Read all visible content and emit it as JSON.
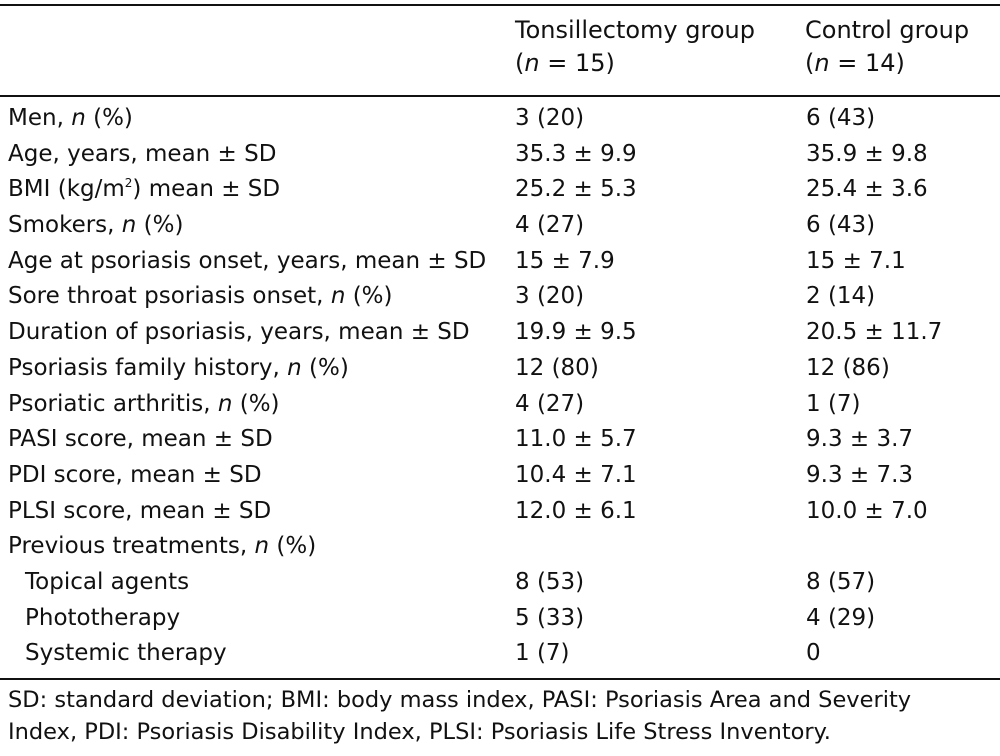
{
  "header": {
    "col1_title": "Tonsillectomy group",
    "col1_n": "(n = 15)",
    "col2_title": "Control group",
    "col2_n": "(n = 14)"
  },
  "rows": [
    {
      "label_pre": "Men, ",
      "label_it": "n",
      "label_post": " (%)",
      "v1": "3 (20)",
      "v2": "6 (43)"
    },
    {
      "label": "Age, years, mean ± SD",
      "v1": "35.3 ± 9.9",
      "v2": "35.9 ± 9.8"
    },
    {
      "label_pre": "BMI (kg/m",
      "label_sup": "2",
      "label_post": ") mean ± SD",
      "v1": "25.2 ± 5.3",
      "v2": "25.4 ± 3.6"
    },
    {
      "label_pre": "Smokers, ",
      "label_it": "n",
      "label_post": " (%)",
      "v1": "4 (27)",
      "v2": "6 (43)"
    },
    {
      "label": "Age at psoriasis onset, years, mean ± SD",
      "v1": "15 ± 7.9",
      "v2": "15 ± 7.1"
    },
    {
      "label_pre": "Sore throat psoriasis onset, ",
      "label_it": "n",
      "label_post": " (%)",
      "v1": "3 (20)",
      "v2": "2 (14)"
    },
    {
      "label": "Duration of psoriasis, years, mean ± SD",
      "v1": "19.9 ± 9.5",
      "v2": "20.5 ± 11.7"
    },
    {
      "label_pre": "Psoriasis family history, ",
      "label_it": "n",
      "label_post": " (%)",
      "v1": "12 (80)",
      "v2": "12 (86)"
    },
    {
      "label_pre": "Psoriatic arthritis, ",
      "label_it": "n",
      "label_post": " (%)",
      "v1": "4 (27)",
      "v2": "1 (7)"
    },
    {
      "label": "PASI score, mean ± SD",
      "v1": "11.0 ± 5.7",
      "v2": "9.3 ± 3.7"
    },
    {
      "label": "PDI score, mean ± SD",
      "v1": "10.4 ± 7.1",
      "v2": "9.3 ± 7.3"
    },
    {
      "label": "PLSI score, mean ± SD",
      "v1": "12.0 ± 6.1",
      "v2": "10.0 ± 7.0"
    },
    {
      "label_pre": "Previous treatments, ",
      "label_it": "n",
      "label_post": " (%)",
      "v1": "",
      "v2": ""
    },
    {
      "label": "Topical agents",
      "v1": "8 (53)",
      "v2": "8 (57)",
      "sub": true
    },
    {
      "label": "Phototherapy",
      "v1": "5 (33)",
      "v2": "4 (29)",
      "sub": true
    },
    {
      "label": "Systemic therapy",
      "v1": "1 (7)",
      "v2": "0",
      "sub": true
    }
  ],
  "footnote": {
    "line1": "SD: standard deviation; BMI: body mass index, PASI: Psoriasis Area and Severity",
    "line2": "Index, PDI: Psoriasis Disability Index, PLSI: Psoriasis Life Stress Inventory."
  }
}
